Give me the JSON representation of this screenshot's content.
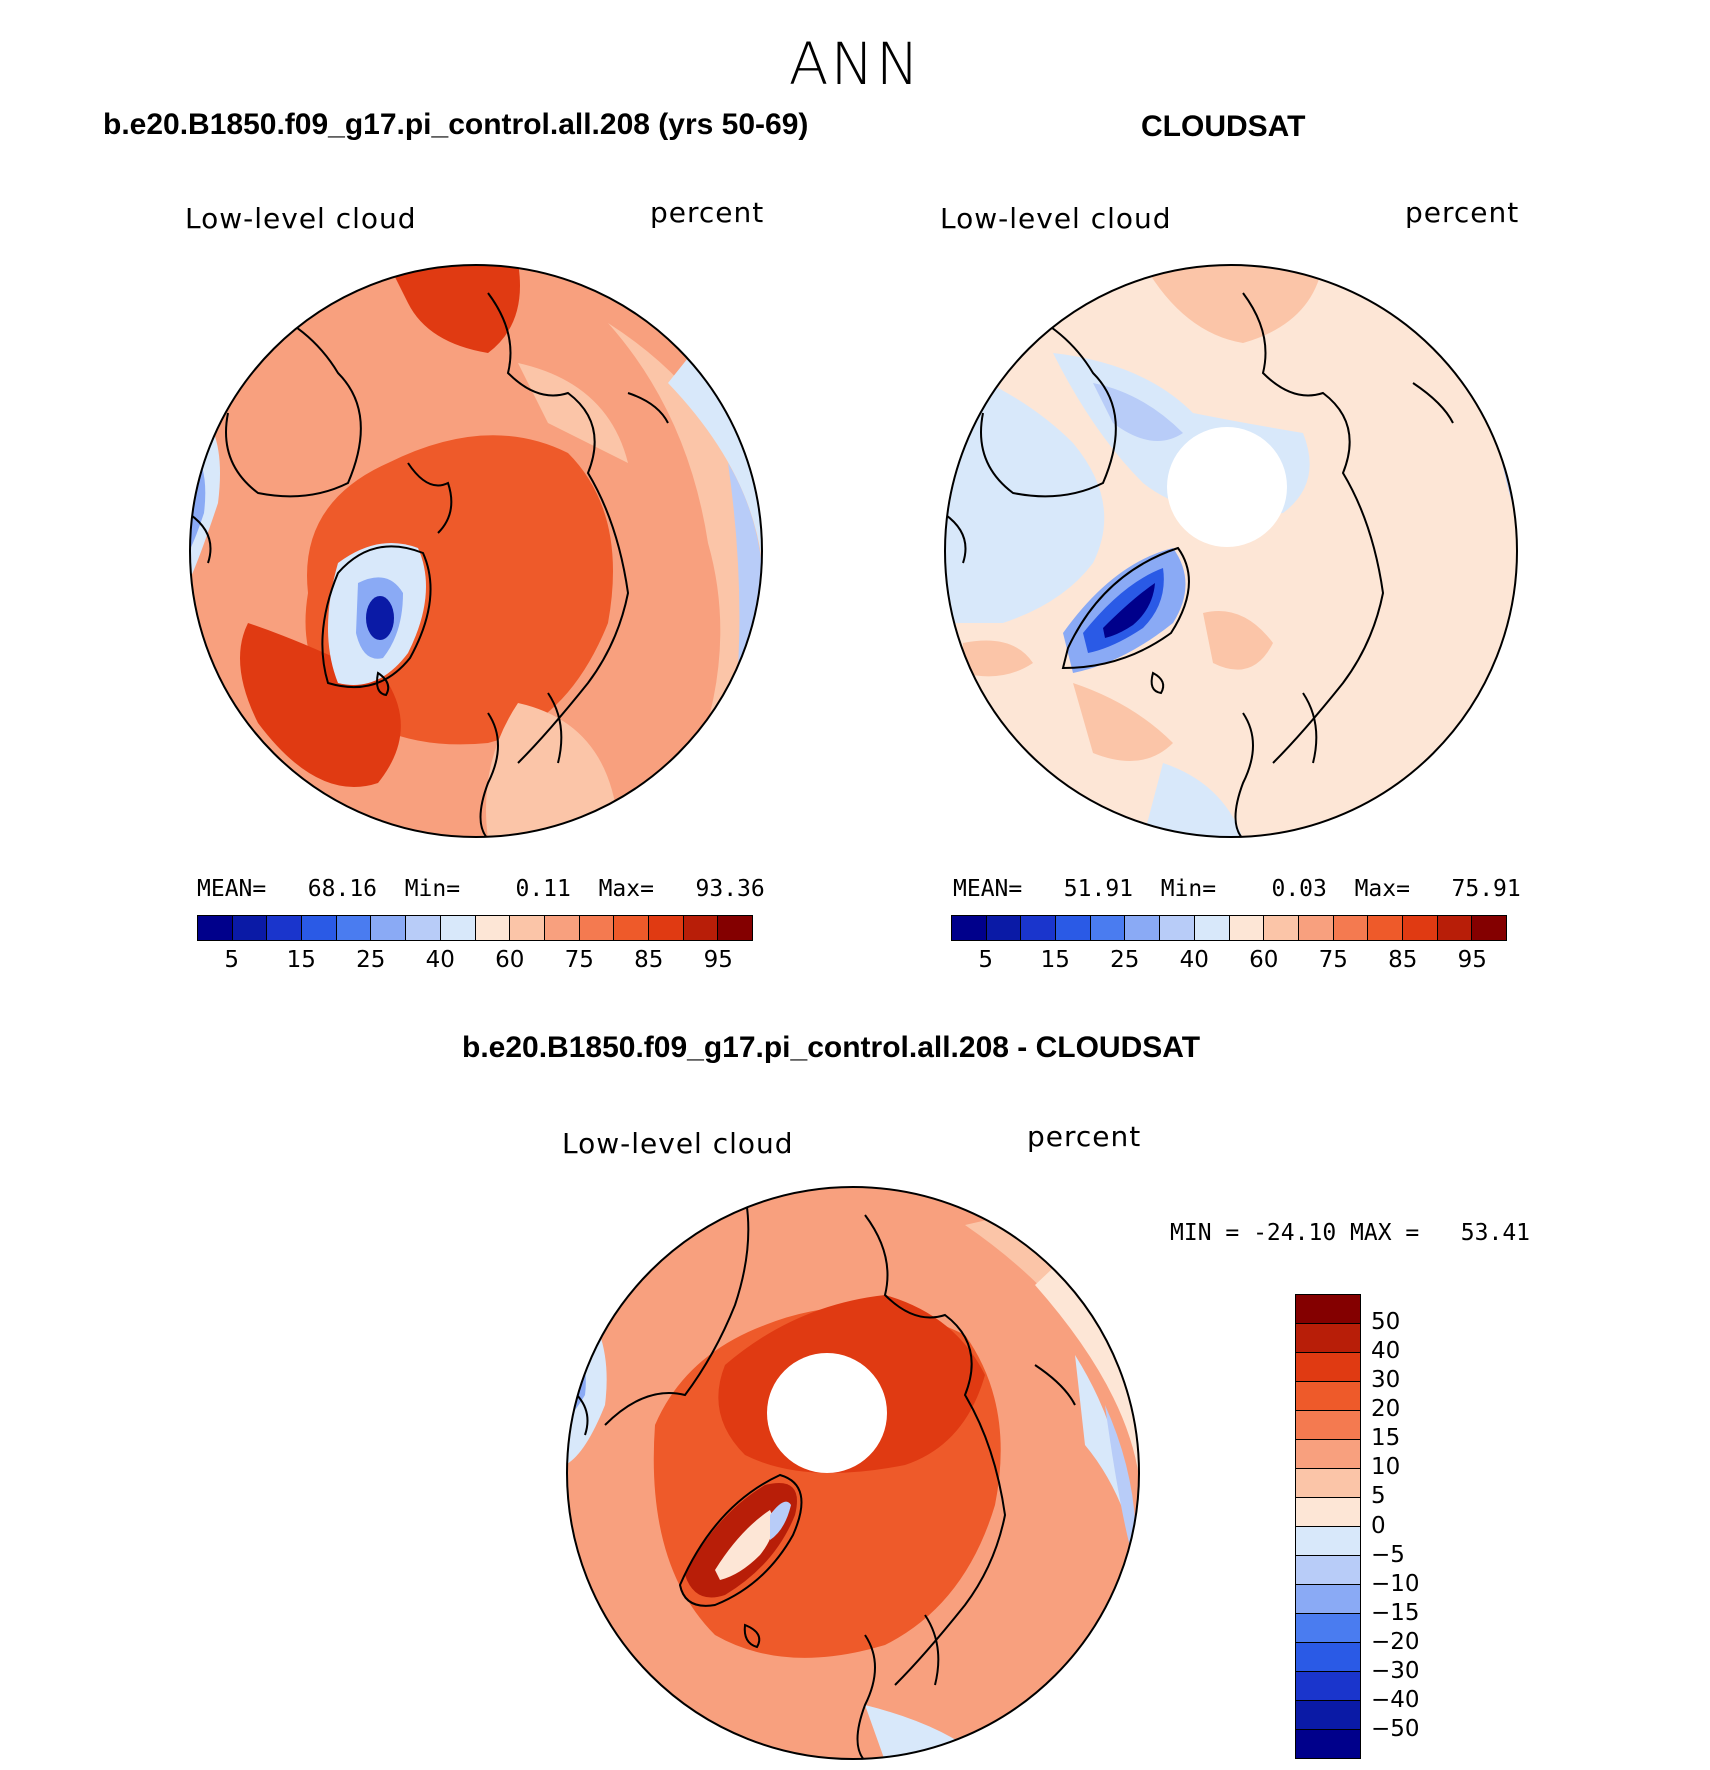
{
  "season": "ANN",
  "panels": {
    "model": {
      "title": "b.e20.B1850.f09_g17.pi_control.all.208 (yrs 50-69)",
      "variable": "Low-level cloud",
      "units": "percent",
      "stats": "MEAN=   68.16  Min=    0.11  Max=   93.36"
    },
    "obs": {
      "title": "CLOUDSAT",
      "variable": "Low-level cloud",
      "units": "percent",
      "stats": "MEAN=   51.91  Min=    0.03  Max=   75.91"
    },
    "diff": {
      "title": "b.e20.B1850.f09_g17.pi_control.all.208 - CLOUDSAT",
      "variable": "Low-level cloud",
      "units": "percent",
      "stats": "MIN = -24.10 MAX =   53.41"
    }
  },
  "colorbar_abs": {
    "colors": [
      "#00008b",
      "#0a1aa6",
      "#1a35cc",
      "#2a5ae6",
      "#4a7cf0",
      "#8aaaf5",
      "#b8ccf8",
      "#d8e8fa",
      "#fde6d6",
      "#fbc5a8",
      "#f8a07e",
      "#f47a50",
      "#ee5a2a",
      "#e03a12",
      "#b81e08",
      "#840000"
    ],
    "tick_labels": [
      "5",
      "15",
      "25",
      "40",
      "60",
      "75",
      "85",
      "95"
    ]
  },
  "colorbar_diff": {
    "colors": [
      "#840000",
      "#b81e08",
      "#e03a12",
      "#ee5a2a",
      "#f47a50",
      "#f8a07e",
      "#fbc5a8",
      "#fde6d6",
      "#d8e8fa",
      "#b8ccf8",
      "#8aaaf5",
      "#4a7cf0",
      "#2a5ae6",
      "#1a35cc",
      "#0a1aa6",
      "#00008b"
    ],
    "tick_labels": [
      "50",
      "40",
      "30",
      "20",
      "15",
      "10",
      "5",
      "0",
      "−5",
      "−10",
      "−15",
      "−20",
      "−30",
      "−40",
      "−50"
    ]
  }
}
